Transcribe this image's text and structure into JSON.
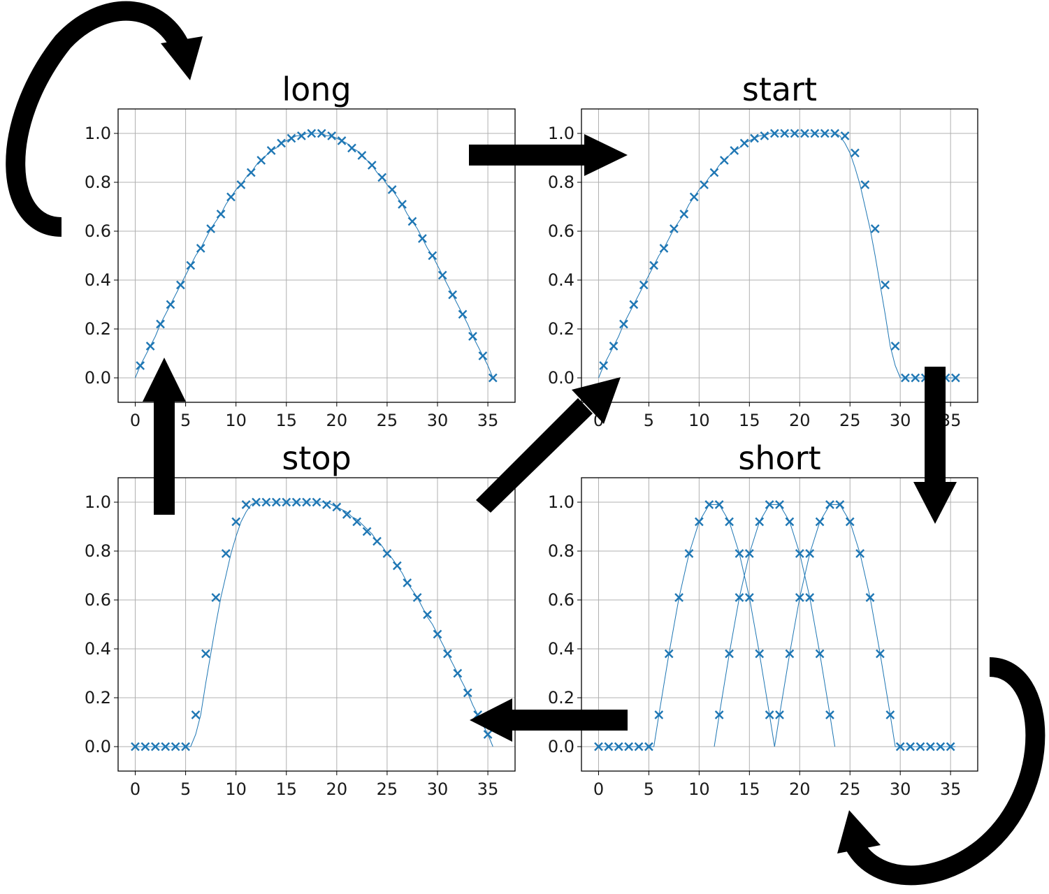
{
  "colors": {
    "series": "#1f77b4",
    "arrows": "#000000"
  },
  "arrow_icons": [
    "loop-arrow-long",
    "arrow-long-to-start",
    "arrow-start-to-short",
    "loop-arrow-short",
    "arrow-short-to-stop",
    "arrow-stop-to-long",
    "arrow-stop-to-start"
  ],
  "chart_data": [
    {
      "type": "line",
      "title": "long",
      "marker": "x",
      "xlim": [
        -1.7,
        37.7
      ],
      "ylim": [
        -0.1,
        1.1
      ],
      "xticks": [
        0,
        5,
        10,
        15,
        20,
        25,
        30,
        35
      ],
      "yticks": [
        0.0,
        0.2,
        0.4,
        0.6,
        0.8,
        1.0
      ],
      "xtick_labels": [
        "0",
        "5",
        "10",
        "15",
        "20",
        "25",
        "30",
        "35"
      ],
      "ytick_labels": [
        "0.0",
        "0.2",
        "0.4",
        "0.6",
        "0.8",
        "1.0"
      ],
      "grid": true,
      "series": [
        {
          "line_x": [
            0,
            0.5,
            1,
            1.5,
            2,
            2.5,
            3,
            3.5,
            4,
            4.5,
            5,
            5.5,
            6,
            6.5,
            7,
            7.5,
            8,
            8.5,
            9,
            9.5,
            10,
            10.5,
            11,
            11.5,
            12,
            12.5,
            13,
            13.5,
            14,
            14.5,
            15,
            15.5,
            16,
            16.5,
            17,
            17.5,
            18,
            18.5,
            19,
            19.5,
            20,
            20.5,
            21,
            21.5,
            22,
            22.5,
            23,
            23.5,
            24,
            24.5,
            25,
            25.5,
            26,
            26.5,
            27,
            27.5,
            28,
            28.5,
            29,
            29.5,
            30,
            30.5,
            31,
            31.5,
            32,
            32.5,
            33,
            33.5,
            34,
            34.5,
            35,
            35.5
          ],
          "line_y": [
            0.0,
            0.05,
            0.09,
            0.13,
            0.17,
            0.22,
            0.26,
            0.3,
            0.34,
            0.38,
            0.42,
            0.46,
            0.5,
            0.53,
            0.57,
            0.61,
            0.64,
            0.67,
            0.71,
            0.74,
            0.77,
            0.79,
            0.82,
            0.84,
            0.87,
            0.89,
            0.91,
            0.93,
            0.94,
            0.96,
            0.97,
            0.98,
            0.99,
            0.99,
            1.0,
            1.0,
            1.0,
            1.0,
            0.99,
            0.99,
            0.98,
            0.97,
            0.96,
            0.94,
            0.93,
            0.91,
            0.89,
            0.87,
            0.84,
            0.82,
            0.79,
            0.77,
            0.74,
            0.71,
            0.67,
            0.64,
            0.61,
            0.57,
            0.53,
            0.5,
            0.46,
            0.42,
            0.38,
            0.34,
            0.3,
            0.26,
            0.22,
            0.17,
            0.13,
            0.09,
            0.05,
            0.0
          ],
          "marker_x": [
            0.5,
            1.5,
            2.5,
            3.5,
            4.5,
            5.5,
            6.5,
            7.5,
            8.5,
            9.5,
            10.5,
            11.5,
            12.5,
            13.5,
            14.5,
            15.5,
            16.5,
            17.5,
            18.5,
            19.5,
            20.5,
            21.5,
            22.5,
            23.5,
            24.5,
            25.5,
            26.5,
            27.5,
            28.5,
            29.5,
            30.5,
            31.5,
            32.5,
            33.5,
            34.5,
            35.5
          ],
          "marker_y": [
            0.05,
            0.13,
            0.22,
            0.3,
            0.38,
            0.46,
            0.53,
            0.61,
            0.67,
            0.74,
            0.79,
            0.84,
            0.89,
            0.93,
            0.96,
            0.98,
            0.99,
            1.0,
            1.0,
            0.99,
            0.97,
            0.94,
            0.91,
            0.87,
            0.82,
            0.77,
            0.71,
            0.64,
            0.57,
            0.5,
            0.42,
            0.34,
            0.26,
            0.17,
            0.09,
            0.0
          ]
        }
      ]
    },
    {
      "type": "line",
      "title": "start",
      "marker": "x",
      "xlim": [
        -1.7,
        37.7
      ],
      "ylim": [
        -0.1,
        1.1
      ],
      "xticks": [
        0,
        5,
        10,
        15,
        20,
        25,
        30,
        35
      ],
      "yticks": [
        0.0,
        0.2,
        0.4,
        0.6,
        0.8,
        1.0
      ],
      "xtick_labels": [
        "0",
        "5",
        "10",
        "15",
        "20",
        "25",
        "30",
        "35"
      ],
      "ytick_labels": [
        "0.0",
        "0.2",
        "0.4",
        "0.6",
        "0.8",
        "1.0"
      ],
      "grid": true,
      "series": [
        {
          "line_x": [
            0,
            0.5,
            1,
            1.5,
            2,
            2.5,
            3,
            3.5,
            4,
            4.5,
            5,
            5.5,
            6,
            6.5,
            7,
            7.5,
            8,
            8.5,
            9,
            9.5,
            10,
            10.5,
            11,
            11.5,
            12,
            12.5,
            13,
            13.5,
            14,
            14.5,
            15,
            15.5,
            16,
            16.5,
            17,
            17.5,
            18,
            18.5,
            19,
            19.5,
            20,
            20.5,
            21,
            21.5,
            22,
            22.5,
            23,
            23.5,
            24,
            24.5,
            25,
            25.5,
            26,
            26.5,
            27,
            27.5,
            28,
            28.5,
            29,
            29.5,
            30,
            35.5
          ],
          "line_y": [
            0.0,
            0.05,
            0.09,
            0.13,
            0.17,
            0.22,
            0.26,
            0.3,
            0.34,
            0.38,
            0.42,
            0.46,
            0.5,
            0.53,
            0.57,
            0.61,
            0.64,
            0.67,
            0.71,
            0.74,
            0.77,
            0.79,
            0.82,
            0.84,
            0.87,
            0.89,
            0.91,
            0.93,
            0.94,
            0.96,
            0.97,
            0.98,
            0.99,
            0.99,
            1.0,
            1.0,
            1.0,
            1.0,
            1.0,
            1.0,
            1.0,
            1.0,
            1.0,
            1.0,
            1.0,
            1.0,
            1.0,
            1.0,
            0.99,
            0.96,
            0.92,
            0.86,
            0.79,
            0.7,
            0.61,
            0.5,
            0.38,
            0.26,
            0.13,
            0.05,
            0.0,
            0.0
          ],
          "marker_x": [
            0.5,
            1.5,
            2.5,
            3.5,
            4.5,
            5.5,
            6.5,
            7.5,
            8.5,
            9.5,
            10.5,
            11.5,
            12.5,
            13.5,
            14.5,
            15.5,
            16.5,
            17.5,
            18.5,
            19.5,
            20.5,
            21.5,
            22.5,
            23.5,
            24.5,
            25.5,
            26.5,
            27.5,
            28.5,
            29.5,
            30.5,
            31.5,
            32.5,
            33.5,
            34.5,
            35.5
          ],
          "marker_y": [
            0.05,
            0.13,
            0.22,
            0.3,
            0.38,
            0.46,
            0.53,
            0.61,
            0.67,
            0.74,
            0.79,
            0.84,
            0.89,
            0.93,
            0.96,
            0.98,
            0.99,
            1.0,
            1.0,
            1.0,
            1.0,
            1.0,
            1.0,
            1.0,
            0.99,
            0.92,
            0.79,
            0.61,
            0.38,
            0.13,
            0.0,
            0.0,
            0.0,
            0.0,
            0.0,
            0.0
          ]
        }
      ]
    },
    {
      "type": "line",
      "title": "stop",
      "marker": "x",
      "xlim": [
        -1.7,
        37.7
      ],
      "ylim": [
        -0.1,
        1.1
      ],
      "xticks": [
        0,
        5,
        10,
        15,
        20,
        25,
        30,
        35
      ],
      "yticks": [
        0.0,
        0.2,
        0.4,
        0.6,
        0.8,
        1.0
      ],
      "xtick_labels": [
        "0",
        "5",
        "10",
        "15",
        "20",
        "25",
        "30",
        "35"
      ],
      "ytick_labels": [
        "0.0",
        "0.2",
        "0.4",
        "0.6",
        "0.8",
        "1.0"
      ],
      "grid": true,
      "series": [
        {
          "line_x": [
            0,
            5.5,
            6,
            6.5,
            7,
            7.5,
            8,
            8.5,
            9,
            9.5,
            10,
            10.5,
            11,
            11.5,
            12,
            12.5,
            13,
            13.5,
            14,
            14.5,
            15,
            15.5,
            16,
            16.5,
            17,
            17.5,
            18,
            18.5,
            19,
            19.5,
            20,
            20.5,
            21,
            21.5,
            22,
            22.5,
            23,
            23.5,
            24,
            24.5,
            25,
            25.5,
            26,
            26.5,
            27,
            27.5,
            28,
            28.5,
            29,
            29.5,
            30,
            30.5,
            31,
            31.5,
            32,
            32.5,
            33,
            33.5,
            34,
            34.5,
            35,
            35.5
          ],
          "line_y": [
            0.0,
            0.0,
            0.05,
            0.13,
            0.26,
            0.38,
            0.5,
            0.61,
            0.7,
            0.79,
            0.86,
            0.92,
            0.96,
            0.99,
            1.0,
            1.0,
            1.0,
            1.0,
            1.0,
            1.0,
            1.0,
            1.0,
            1.0,
            1.0,
            1.0,
            1.0,
            1.0,
            1.0,
            1.0,
            0.99,
            0.98,
            0.97,
            0.96,
            0.94,
            0.93,
            0.91,
            0.89,
            0.87,
            0.84,
            0.82,
            0.79,
            0.77,
            0.74,
            0.71,
            0.67,
            0.64,
            0.61,
            0.57,
            0.53,
            0.5,
            0.46,
            0.42,
            0.38,
            0.34,
            0.3,
            0.26,
            0.22,
            0.17,
            0.13,
            0.09,
            0.05,
            0.0
          ],
          "marker_x": [
            0,
            1,
            2,
            3,
            4,
            5,
            6,
            7,
            8,
            9,
            10,
            11,
            12,
            13,
            14,
            15,
            16,
            17,
            18,
            19,
            20,
            21,
            22,
            23,
            24,
            25,
            26,
            27,
            28,
            29,
            30,
            31,
            32,
            33,
            34,
            35
          ],
          "marker_y": [
            0.0,
            0.0,
            0.0,
            0.0,
            0.0,
            0.0,
            0.13,
            0.38,
            0.61,
            0.79,
            0.92,
            0.99,
            1.0,
            1.0,
            1.0,
            1.0,
            1.0,
            1.0,
            1.0,
            0.99,
            0.98,
            0.95,
            0.92,
            0.88,
            0.84,
            0.79,
            0.74,
            0.67,
            0.61,
            0.54,
            0.46,
            0.38,
            0.3,
            0.22,
            0.13,
            0.05
          ]
        }
      ]
    },
    {
      "type": "line",
      "title": "short",
      "marker": "x",
      "xlim": [
        -1.7,
        37.7
      ],
      "ylim": [
        -0.1,
        1.1
      ],
      "xticks": [
        0,
        5,
        10,
        15,
        20,
        25,
        30,
        35
      ],
      "yticks": [
        0.0,
        0.2,
        0.4,
        0.6,
        0.8,
        1.0
      ],
      "xtick_labels": [
        "0",
        "5",
        "10",
        "15",
        "20",
        "25",
        "30",
        "35"
      ],
      "ytick_labels": [
        "0.0",
        "0.2",
        "0.4",
        "0.6",
        "0.8",
        "1.0"
      ],
      "grid": true,
      "series": [
        {
          "line_x": [
            0,
            5.5,
            6,
            7,
            8,
            9,
            10,
            11,
            12,
            13,
            14,
            15,
            16,
            17,
            17.5
          ],
          "line_y": [
            0.0,
            0.0,
            0.13,
            0.38,
            0.61,
            0.79,
            0.92,
            0.99,
            0.99,
            0.92,
            0.79,
            0.61,
            0.38,
            0.13,
            0.0
          ],
          "marker_x": [
            0,
            1,
            2,
            3,
            4,
            5,
            6,
            7,
            8,
            9,
            10,
            11,
            12,
            13,
            14,
            15,
            16,
            17
          ],
          "marker_y": [
            0.0,
            0.0,
            0.0,
            0.0,
            0.0,
            0.0,
            0.13,
            0.38,
            0.61,
            0.79,
            0.92,
            0.99,
            0.99,
            0.92,
            0.79,
            0.61,
            0.38,
            0.13
          ]
        },
        {
          "line_x": [
            11.5,
            12,
            13,
            14,
            15,
            16,
            17,
            18,
            19,
            20,
            21,
            22,
            23,
            23.5
          ],
          "line_y": [
            0.0,
            0.13,
            0.38,
            0.61,
            0.79,
            0.92,
            0.99,
            0.99,
            0.92,
            0.79,
            0.61,
            0.38,
            0.13,
            0.0
          ],
          "marker_x": [
            12,
            13,
            14,
            15,
            16,
            17,
            18,
            19,
            20,
            21,
            22,
            23
          ],
          "marker_y": [
            0.13,
            0.38,
            0.61,
            0.79,
            0.92,
            0.99,
            0.99,
            0.92,
            0.79,
            0.61,
            0.38,
            0.13
          ]
        },
        {
          "line_x": [
            17.5,
            18,
            19,
            20,
            21,
            22,
            23,
            24,
            25,
            26,
            27,
            28,
            29,
            29.5,
            35.5
          ],
          "line_y": [
            0.0,
            0.13,
            0.38,
            0.61,
            0.79,
            0.92,
            0.99,
            0.99,
            0.92,
            0.79,
            0.61,
            0.38,
            0.13,
            0.0,
            0.0
          ],
          "marker_x": [
            18,
            19,
            20,
            21,
            22,
            23,
            24,
            25,
            26,
            27,
            28,
            29,
            30,
            31,
            32,
            33,
            34,
            35
          ],
          "marker_y": [
            0.13,
            0.38,
            0.61,
            0.79,
            0.92,
            0.99,
            0.99,
            0.92,
            0.79,
            0.61,
            0.38,
            0.13,
            0.0,
            0.0,
            0.0,
            0.0,
            0.0,
            0.0
          ]
        }
      ]
    }
  ]
}
